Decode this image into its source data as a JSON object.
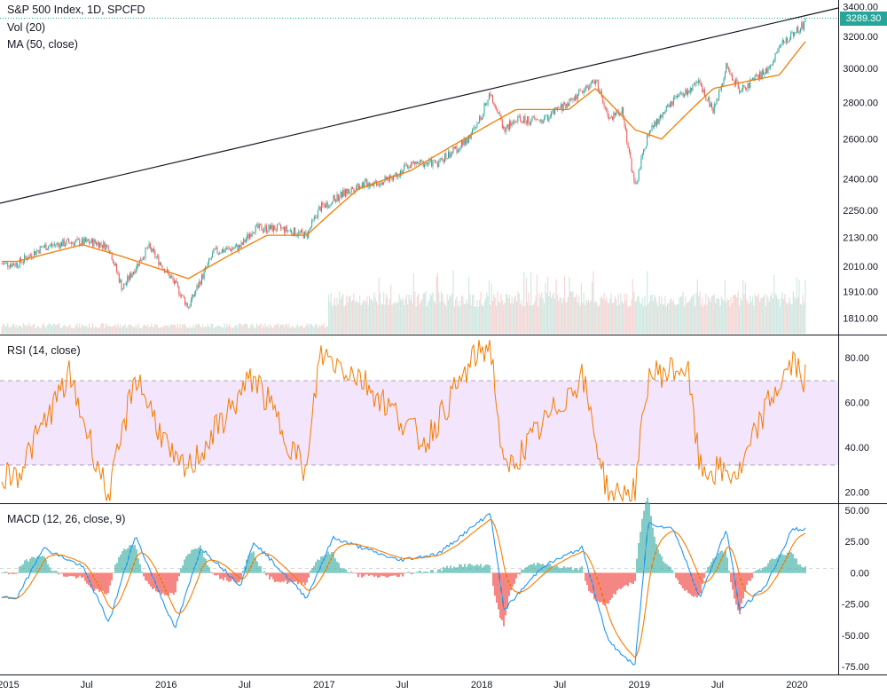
{
  "header": {
    "title": "S&P 500 Index, 1D, SPCFD",
    "vol_label": "Vol (20)",
    "ma_label": "MA (50, close)",
    "last_price": "3289.30"
  },
  "panes": {
    "rsi_label": "RSI (14, close)",
    "macd_label": "MACD (12, 26, close, 9)"
  },
  "colors": {
    "up": "#26a69a",
    "down": "#ef5350",
    "ma": "#f57c00",
    "rsi": "#f57c00",
    "rsi_band": "#f3e5fb",
    "macd": "#2196f3",
    "signal": "#f57c00",
    "trendline": "#131722",
    "price_line": "#26a69a"
  },
  "chart_data": [
    {
      "type": "line",
      "name": "S&P 500 price",
      "scale": "log",
      "x": [
        "2015-01",
        "2015-03",
        "2015-05",
        "2015-07",
        "2015-08",
        "2015-09",
        "2015-11",
        "2016-01",
        "2016-02",
        "2016-04",
        "2016-06",
        "2016-07",
        "2016-09",
        "2016-11",
        "2016-12",
        "2017-03",
        "2017-05",
        "2017-07",
        "2017-09",
        "2017-11",
        "2017-12",
        "2018-01",
        "2018-02",
        "2018-03",
        "2018-05",
        "2018-07",
        "2018-09",
        "2018-10",
        "2018-11",
        "2018-12",
        "2019-01",
        "2019-03",
        "2019-05",
        "2019-06",
        "2019-07",
        "2019-08",
        "2019-10",
        "2019-11",
        "2019-12",
        "2020-01"
      ],
      "y": [
        2020,
        2090,
        2110,
        2110,
        2090,
        1920,
        2090,
        1940,
        1850,
        2070,
        2090,
        2170,
        2170,
        2140,
        2260,
        2370,
        2390,
        2470,
        2480,
        2580,
        2670,
        2860,
        2650,
        2700,
        2700,
        2800,
        2930,
        2700,
        2760,
        2350,
        2630,
        2810,
        2910,
        2750,
        3010,
        2870,
        2980,
        3130,
        3220,
        3289
      ]
    },
    {
      "type": "line",
      "name": "MA (50, close)",
      "x": [
        "2015-01",
        "2015-06",
        "2015-09",
        "2016-02",
        "2016-05",
        "2016-08",
        "2016-11",
        "2017-03",
        "2017-07",
        "2017-12",
        "2018-03",
        "2018-07",
        "2018-09",
        "2018-12",
        "2019-02",
        "2019-06",
        "2019-09",
        "2019-11",
        "2020-01"
      ],
      "y": [
        2030,
        2100,
        2050,
        1960,
        2050,
        2140,
        2140,
        2350,
        2440,
        2640,
        2760,
        2760,
        2880,
        2650,
        2600,
        2880,
        2930,
        2960,
        3170
      ]
    },
    {
      "type": "line",
      "name": "RSI (14, close)",
      "ylim": [
        15,
        90
      ],
      "bands": [
        30,
        70
      ],
      "x": [
        "2015-01",
        "2015-05",
        "2015-08",
        "2015-10",
        "2016-01",
        "2016-02",
        "2016-07",
        "2016-11",
        "2016-12",
        "2017-03",
        "2017-08",
        "2017-12",
        "2018-01",
        "2018-02",
        "2018-08",
        "2018-10",
        "2018-12",
        "2019-01",
        "2019-04",
        "2019-05",
        "2019-08",
        "2019-10",
        "2019-12",
        "2020-01"
      ],
      "y": [
        28,
        72,
        17,
        73,
        32,
        30,
        72,
        28,
        82,
        72,
        42,
        82,
        86,
        28,
        72,
        18,
        20,
        72,
        76,
        30,
        28,
        58,
        78,
        70
      ]
    },
    {
      "type": "line",
      "name": "MACD (12, 26, close, 9)",
      "ylim": [
        -80,
        55
      ],
      "x": [
        "2015-01",
        "2015-03",
        "2015-06",
        "2015-08",
        "2015-10",
        "2016-01",
        "2016-03",
        "2016-06",
        "2016-07",
        "2016-11",
        "2017-01",
        "2017-06",
        "2017-09",
        "2018-01",
        "2018-02",
        "2018-05",
        "2018-08",
        "2018-10",
        "2018-12",
        "2019-01",
        "2019-03",
        "2019-05",
        "2019-07",
        "2019-08",
        "2019-10",
        "2019-12",
        "2020-01"
      ],
      "y": [
        -20,
        20,
        5,
        -40,
        30,
        -45,
        20,
        -10,
        25,
        -20,
        28,
        10,
        15,
        48,
        -30,
        5,
        20,
        -55,
        -75,
        40,
        35,
        -20,
        35,
        -30,
        -10,
        35,
        35
      ]
    }
  ],
  "axis": {
    "price_ticks": [
      "3400.00",
      "3289.30",
      "3200.00",
      "3000.00",
      "2800.00",
      "2600.00",
      "2400.00",
      "2250.00",
      "2130.00",
      "2010.00",
      "1910.00",
      "1810.00"
    ],
    "rsi_ticks": [
      "80.00",
      "60.00",
      "40.00",
      "20.00"
    ],
    "macd_ticks": [
      "50.00",
      "25.00",
      "0.00",
      "-25.00",
      "-50.00",
      "-75.00"
    ],
    "x_ticks": [
      "2015",
      "Jul",
      "2016",
      "Jul",
      "2017",
      "Jul",
      "2018",
      "Jul",
      "2019",
      "Jul",
      "2020"
    ]
  }
}
